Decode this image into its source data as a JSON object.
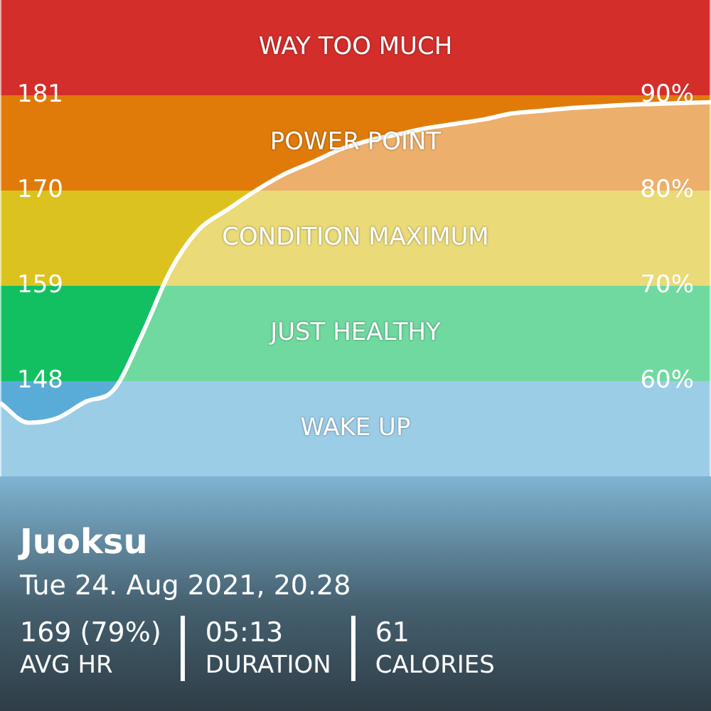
{
  "chart_data": {
    "type": "area",
    "title": "Juoksu",
    "subtitle": "Tue 24. Aug 2021, 20.28",
    "annotations": [
      "169 (79%)",
      "AVG HR",
      "05:13",
      "DURATION",
      "61",
      "CALORIES"
    ],
    "categories": [
      null,
      null,
      null,
      null,
      null,
      null,
      null,
      null,
      null,
      null,
      null,
      null,
      null,
      null,
      null,
      null,
      null,
      null,
      null,
      null,
      null,
      null,
      null,
      null,
      null,
      null
    ],
    "series": [
      {
        "type": "area",
        "color": "#ffffff",
        "values": [
          145.5,
          143.2,
          143.7,
          145.6,
          147.0,
          153.4,
          160.8,
          165.5,
          167.8,
          170.0,
          171.9,
          173.3,
          174.8,
          175.8,
          176.5,
          177.2,
          177.7,
          178.2,
          178.9,
          179.2,
          179.5,
          179.7,
          179.9,
          180.0,
          180.1,
          180.2
        ]
      }
    ],
    "ylim": [
      137,
      192
    ],
    "yticks": [
      148,
      159,
      170,
      181
    ],
    "y2lim": [
      50,
      100
    ],
    "y2ticks": [
      {
        "value": 60,
        "label": "60%"
      },
      {
        "value": 70,
        "label": "70%"
      },
      {
        "value": 80,
        "label": "80%"
      },
      {
        "value": 90,
        "label": "90%"
      }
    ],
    "bands": [
      {
        "axis": "y",
        "from": 137,
        "to": 148,
        "label": "WAKE UP",
        "color": "#5aacd8"
      },
      {
        "axis": "y",
        "from": 148,
        "to": 159,
        "label": "JUST HEALTHY",
        "color": "#12c062"
      },
      {
        "axis": "y",
        "from": 159,
        "to": 170,
        "label": "CONDITION MAXIMUM",
        "color": "#dcc21e"
      },
      {
        "axis": "y",
        "from": 170,
        "to": 181,
        "label": "POWER POINT",
        "color": "#e07b0a"
      },
      {
        "axis": "y",
        "from": 181,
        "to": 192,
        "label": "WAY TOO MUCH",
        "color": "#d42e2a"
      }
    ],
    "legend": false,
    "marker": "none",
    "line_style": "solid"
  }
}
